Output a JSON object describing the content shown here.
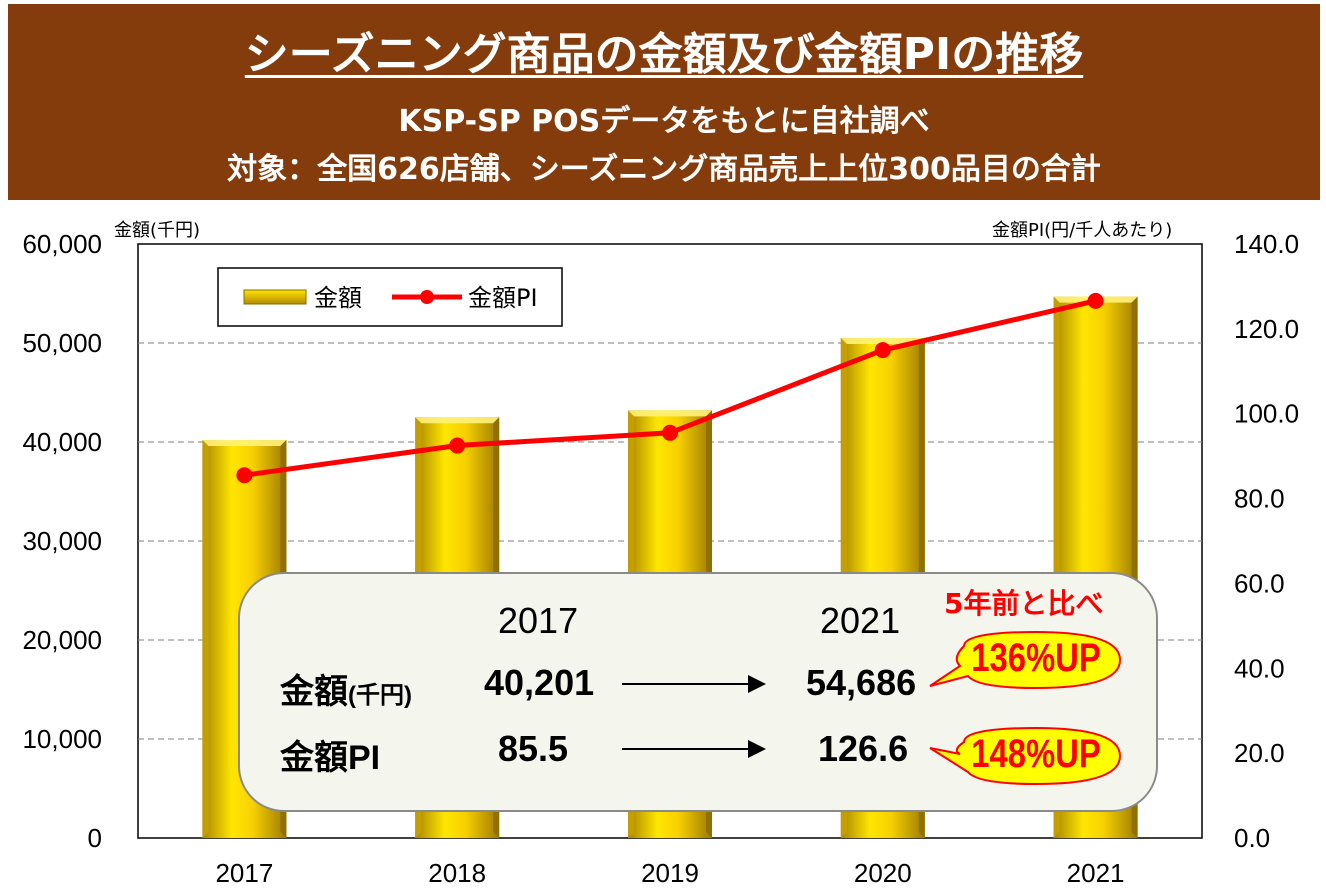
{
  "header": {
    "title": "シーズニング商品の金額及び金額PIの推移",
    "subtitle1": "KSP-SP POSデータをもとに自社調べ",
    "subtitle2": "対象：全国626店舗、シーズニング商品売上上位300品目の合計"
  },
  "axis_units": {
    "left": "金額(千円)",
    "right": "金額PI(円/千人あたり)"
  },
  "colors": {
    "header_bg": "#843c0c",
    "bar_gold": "#f2c200",
    "line_red": "#ff0000",
    "callout_fill": "#ffff00"
  },
  "chart_data": {
    "type": "bar+line",
    "categories": [
      "2017",
      "2018",
      "2019",
      "2020",
      "2021"
    ],
    "series": [
      {
        "name": "金額",
        "type": "bar",
        "axis": "left",
        "values": [
          40201,
          42500,
          43200,
          50500,
          54686
        ]
      },
      {
        "name": "金額PI",
        "type": "line",
        "axis": "right",
        "values": [
          85.5,
          92.5,
          95.5,
          115.0,
          126.6
        ]
      }
    ],
    "left_axis": {
      "min": 0,
      "max": 60000,
      "step": 10000,
      "tick_labels": [
        "0",
        "10,000",
        "20,000",
        "30,000",
        "40,000",
        "50,000",
        "60,000"
      ]
    },
    "right_axis": {
      "min": 0,
      "max": 140,
      "step": 20,
      "tick_labels": [
        "0.0",
        "20.0",
        "40.0",
        "60.0",
        "80.0",
        "100.0",
        "120.0",
        "140.0"
      ]
    },
    "legend": {
      "position": "top-left",
      "entries": [
        "金額",
        "金額PI"
      ]
    },
    "grid": "horizontal-dashed"
  },
  "summary": {
    "year_from": "2017",
    "year_to": "2021",
    "row1_label": "金額",
    "row1_unit": "(千円)",
    "row1_from": "40,201",
    "row1_to": "54,686",
    "row2_label": "金額PI",
    "row2_from": "85.5",
    "row2_to": "126.6",
    "note": "5年前と比べ",
    "row1_change": "136%UP",
    "row2_change": "148%UP"
  }
}
